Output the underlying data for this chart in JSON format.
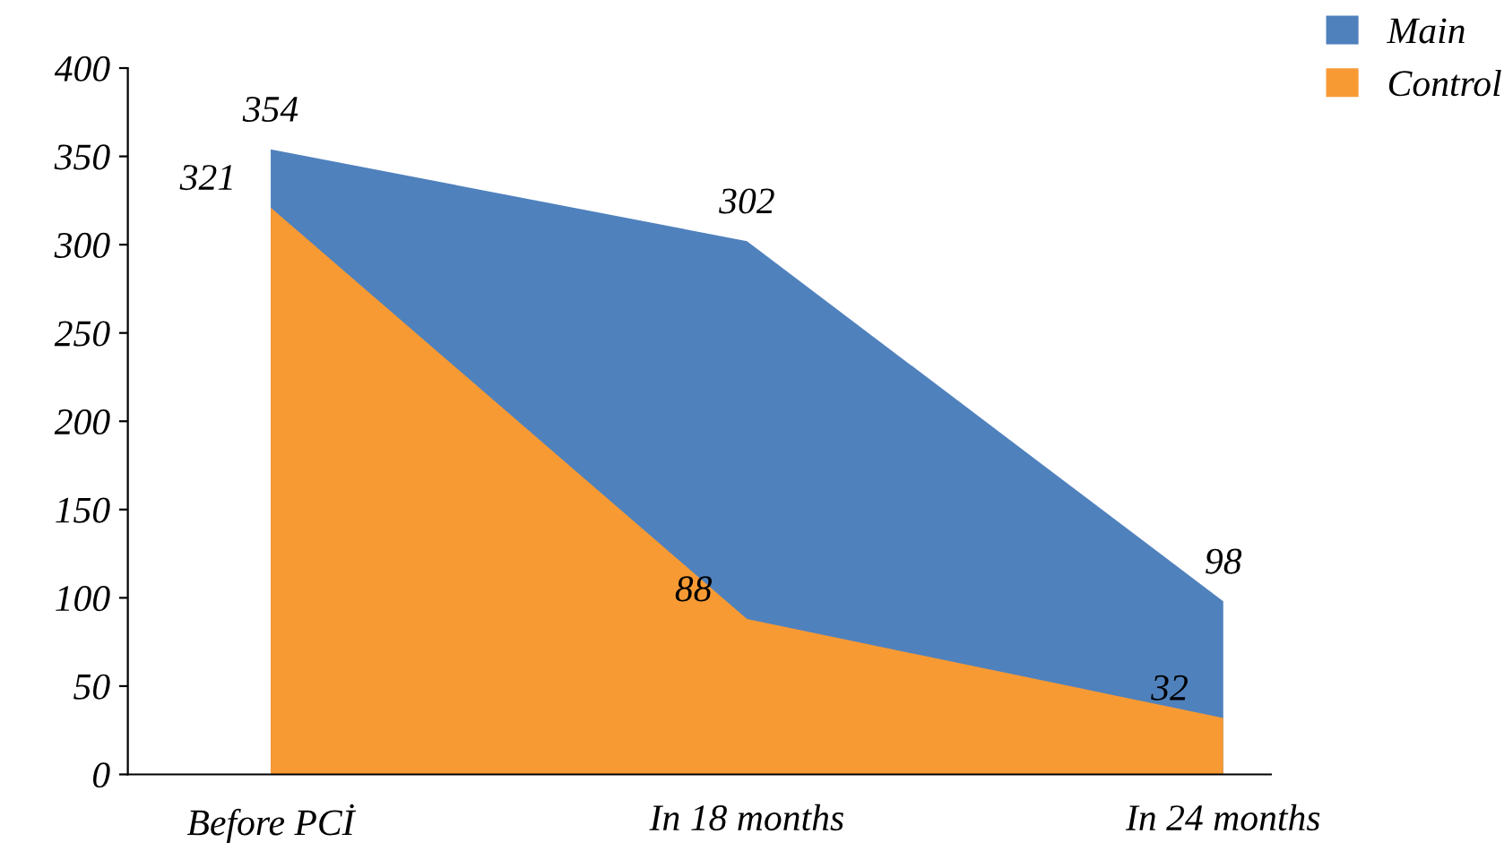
{
  "chart_data": {
    "type": "area",
    "categories": [
      "Before PCİ",
      "In 18 months",
      "In 24 months"
    ],
    "series": [
      {
        "name": "Main",
        "color": "#4f81bd",
        "values": [
          354,
          302,
          98
        ]
      },
      {
        "name": "Control",
        "color": "#f79a34",
        "values": [
          321,
          88,
          32
        ]
      }
    ],
    "ylim": [
      0,
      400
    ],
    "yticks": [
      0,
      50,
      100,
      150,
      200,
      250,
      300,
      350,
      400
    ],
    "data_labels": true,
    "legend": "top right",
    "grid": false
  }
}
